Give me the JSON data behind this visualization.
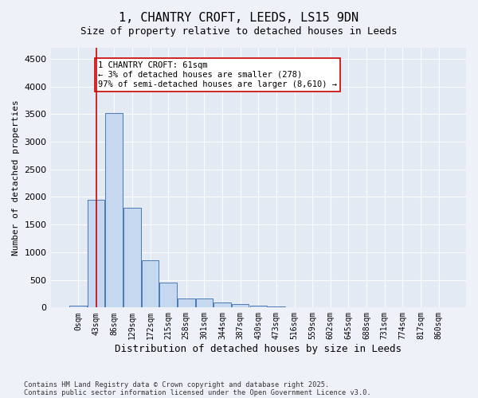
{
  "title_line1": "1, CHANTRY CROFT, LEEDS, LS15 9DN",
  "title_line2": "Size of property relative to detached houses in Leeds",
  "xlabel": "Distribution of detached houses by size in Leeds",
  "ylabel": "Number of detached properties",
  "bin_labels": [
    "0sqm",
    "43sqm",
    "86sqm",
    "129sqm",
    "172sqm",
    "215sqm",
    "258sqm",
    "301sqm",
    "344sqm",
    "387sqm",
    "430sqm",
    "473sqm",
    "516sqm",
    "559sqm",
    "602sqm",
    "645sqm",
    "688sqm",
    "731sqm",
    "774sqm",
    "817sqm",
    "860sqm"
  ],
  "bar_heights": [
    30,
    1950,
    3520,
    1810,
    860,
    450,
    170,
    165,
    95,
    60,
    35,
    20,
    0,
    0,
    0,
    0,
    0,
    0,
    0,
    0,
    0
  ],
  "bar_color": "#c5d8f0",
  "bar_edge_color": "#4a7ab5",
  "vline_x": 1,
  "vline_color": "#cc0000",
  "annotation_text": "1 CHANTRY CROFT: 61sqm\n← 3% of detached houses are smaller (278)\n97% of semi-detached houses are larger (8,610) →",
  "annotation_box_color": "#ffffff",
  "annotation_box_edge": "#cc0000",
  "ylim": [
    0,
    4700
  ],
  "yticks": [
    0,
    500,
    1000,
    1500,
    2000,
    2500,
    3000,
    3500,
    4000,
    4500
  ],
  "footnote1": "Contains HM Land Registry data © Crown copyright and database right 2025.",
  "footnote2": "Contains public sector information licensed under the Open Government Licence v3.0.",
  "bg_color": "#eef2f8",
  "plot_bg_color": "#e4eaf4"
}
